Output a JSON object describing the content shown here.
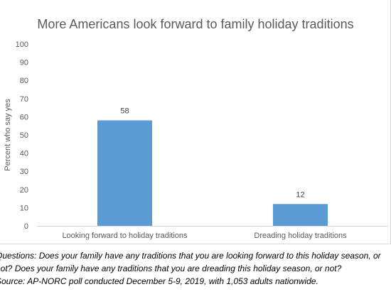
{
  "chart_data": {
    "type": "bar",
    "title": "More Americans look forward to family holiday traditions",
    "ylabel": "Percent who say yes",
    "xlabel": "",
    "categories": [
      "Looking forward to holiday traditions",
      "Dreading holiday traditions"
    ],
    "values": [
      58,
      12
    ],
    "data_labels": [
      "58",
      "12"
    ],
    "ylim": [
      0,
      100
    ],
    "yticks": [
      "0",
      "10",
      "20",
      "30",
      "40",
      "50",
      "60",
      "70",
      "80",
      "90",
      "100"
    ],
    "grid": false,
    "legend": "none",
    "bar_color": "#5b9bd5"
  },
  "notes": [
    "Questions: Does your family have any traditions that you are looking forward to this holiday season, or",
    "not? Does your family have any traditions that you are dreading this holiday season, or not?",
    "Source: AP-NORC poll conducted December 5-9, 2019, with 1,053 adults nationwide."
  ]
}
